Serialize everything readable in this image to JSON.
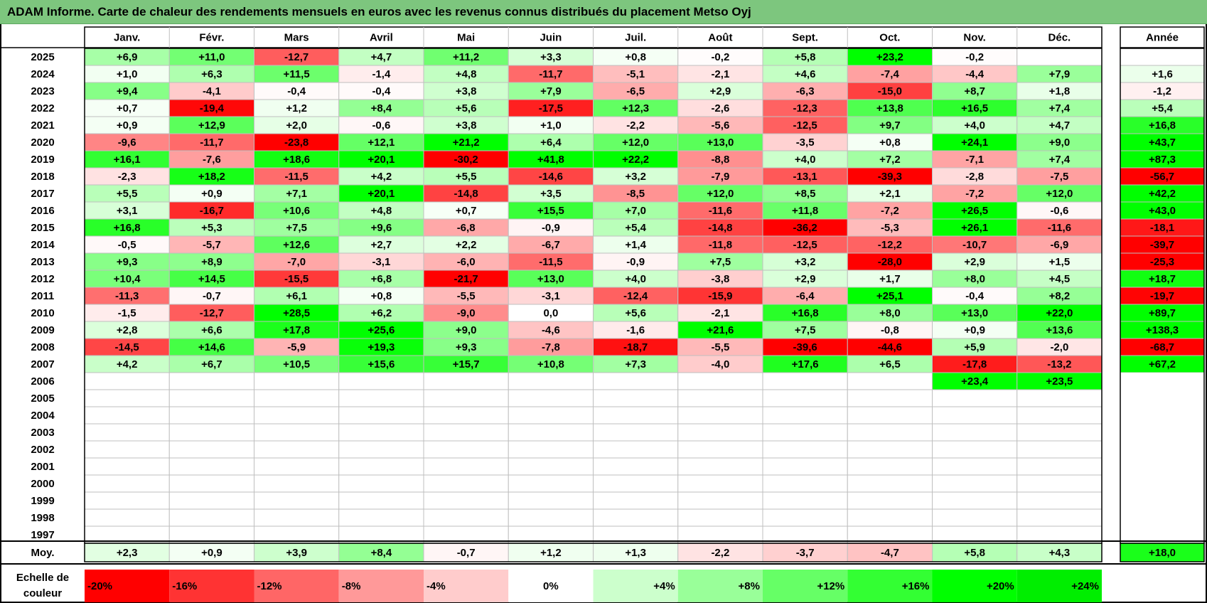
{
  "title": "ADAM Informe. Carte de chaleur des rendements mensuels en euros avec les revenus connus distribués du placement Metso Oyj",
  "chart_data": {
    "type": "heatmap",
    "columns": [
      "Janv.",
      "Févr.",
      "Mars",
      "Avril",
      "Mai",
      "Juin",
      "Juil.",
      "Août",
      "Sept.",
      "Oct.",
      "Nov.",
      "Déc."
    ],
    "year_column": "Année",
    "avg_label": "Moy.",
    "rows": [
      {
        "year": "2025",
        "values": [
          6.9,
          11.0,
          -12.7,
          4.7,
          11.2,
          3.3,
          0.8,
          -0.2,
          5.8,
          23.2,
          -0.2,
          null
        ],
        "annual": null
      },
      {
        "year": "2024",
        "values": [
          1.0,
          6.3,
          11.5,
          -1.4,
          4.8,
          -11.7,
          -5.1,
          -2.1,
          4.6,
          -7.4,
          -4.4,
          7.9
        ],
        "annual": 1.6
      },
      {
        "year": "2023",
        "values": [
          9.4,
          -4.1,
          -0.4,
          -0.4,
          3.8,
          7.9,
          -6.5,
          2.9,
          -6.3,
          -15.0,
          8.7,
          1.8
        ],
        "annual": -1.2
      },
      {
        "year": "2022",
        "values": [
          0.7,
          -19.4,
          1.2,
          8.4,
          5.6,
          -17.5,
          12.3,
          -2.6,
          -12.3,
          13.8,
          16.5,
          7.4
        ],
        "annual": 5.4
      },
      {
        "year": "2021",
        "values": [
          0.9,
          12.9,
          2.0,
          -0.6,
          3.8,
          1.0,
          -2.2,
          -5.6,
          -12.5,
          9.7,
          4.0,
          4.7
        ],
        "annual": 16.8
      },
      {
        "year": "2020",
        "values": [
          -9.6,
          -11.7,
          -23.8,
          12.1,
          21.2,
          6.4,
          12.0,
          13.0,
          -3.5,
          0.8,
          24.1,
          9.0
        ],
        "annual": 43.7
      },
      {
        "year": "2019",
        "values": [
          16.1,
          -7.6,
          18.6,
          20.1,
          -30.2,
          41.8,
          22.2,
          -8.8,
          4.0,
          7.2,
          -7.1,
          7.4
        ],
        "annual": 87.3
      },
      {
        "year": "2018",
        "values": [
          -2.3,
          18.2,
          -11.5,
          4.2,
          5.5,
          -14.6,
          3.2,
          -7.9,
          -13.1,
          -39.3,
          -2.8,
          -7.5
        ],
        "annual": -56.7
      },
      {
        "year": "2017",
        "values": [
          5.5,
          0.9,
          7.1,
          20.1,
          -14.8,
          3.5,
          -8.5,
          12.0,
          8.5,
          2.1,
          -7.2,
          12.0
        ],
        "annual": 42.2
      },
      {
        "year": "2016",
        "values": [
          3.1,
          -16.7,
          10.6,
          4.8,
          0.7,
          15.5,
          7.0,
          -11.6,
          11.8,
          -7.2,
          26.5,
          -0.6
        ],
        "annual": 43.0
      },
      {
        "year": "2015",
        "values": [
          16.8,
          5.3,
          7.5,
          9.6,
          -6.8,
          -0.9,
          5.4,
          -14.8,
          -36.2,
          -5.3,
          26.1,
          -11.6
        ],
        "annual": -18.1
      },
      {
        "year": "2014",
        "values": [
          -0.5,
          -5.7,
          12.6,
          2.7,
          2.2,
          -6.7,
          1.4,
          -11.8,
          -12.5,
          -12.2,
          -10.7,
          -6.9
        ],
        "annual": -39.7
      },
      {
        "year": "2013",
        "values": [
          9.3,
          8.9,
          -7.0,
          -3.1,
          -6.0,
          -11.5,
          -0.9,
          7.5,
          3.2,
          -28.0,
          2.9,
          1.5
        ],
        "annual": -25.3
      },
      {
        "year": "2012",
        "values": [
          10.4,
          14.5,
          -15.5,
          6.8,
          -21.7,
          13.0,
          4.0,
          -3.8,
          2.9,
          1.7,
          8.0,
          4.5
        ],
        "annual": 18.7
      },
      {
        "year": "2011",
        "values": [
          -11.3,
          -0.7,
          6.1,
          0.8,
          -5.5,
          -3.1,
          -12.4,
          -15.9,
          -6.4,
          25.1,
          -0.4,
          8.2
        ],
        "annual": -19.7
      },
      {
        "year": "2010",
        "values": [
          -1.5,
          -12.7,
          28.5,
          6.2,
          -9.0,
          0.0,
          5.6,
          -2.1,
          16.8,
          8.0,
          13.0,
          22.0
        ],
        "annual": 89.7
      },
      {
        "year": "2009",
        "values": [
          2.8,
          6.6,
          17.8,
          25.6,
          9.0,
          -4.6,
          -1.6,
          21.6,
          7.5,
          -0.8,
          0.9,
          13.6
        ],
        "annual": 138.3
      },
      {
        "year": "2008",
        "values": [
          -14.5,
          14.6,
          -5.9,
          19.3,
          9.3,
          -7.8,
          -18.7,
          -5.5,
          -39.6,
          -44.6,
          5.9,
          -2.0
        ],
        "annual": -68.7
      },
      {
        "year": "2007",
        "values": [
          4.2,
          6.7,
          10.5,
          15.6,
          15.7,
          10.8,
          7.3,
          -4.0,
          17.6,
          6.5,
          -17.8,
          -13.2
        ],
        "annual": 67.2
      },
      {
        "year": "2006",
        "values": [
          null,
          null,
          null,
          null,
          null,
          null,
          null,
          null,
          null,
          null,
          23.4,
          23.5
        ],
        "annual": null
      },
      {
        "year": "2005",
        "values": [
          null,
          null,
          null,
          null,
          null,
          null,
          null,
          null,
          null,
          null,
          null,
          null
        ],
        "annual": null
      },
      {
        "year": "2004",
        "values": [
          null,
          null,
          null,
          null,
          null,
          null,
          null,
          null,
          null,
          null,
          null,
          null
        ],
        "annual": null
      },
      {
        "year": "2003",
        "values": [
          null,
          null,
          null,
          null,
          null,
          null,
          null,
          null,
          null,
          null,
          null,
          null
        ],
        "annual": null
      },
      {
        "year": "2002",
        "values": [
          null,
          null,
          null,
          null,
          null,
          null,
          null,
          null,
          null,
          null,
          null,
          null
        ],
        "annual": null
      },
      {
        "year": "2001",
        "values": [
          null,
          null,
          null,
          null,
          null,
          null,
          null,
          null,
          null,
          null,
          null,
          null
        ],
        "annual": null
      },
      {
        "year": "2000",
        "values": [
          null,
          null,
          null,
          null,
          null,
          null,
          null,
          null,
          null,
          null,
          null,
          null
        ],
        "annual": null
      },
      {
        "year": "1999",
        "values": [
          null,
          null,
          null,
          null,
          null,
          null,
          null,
          null,
          null,
          null,
          null,
          null
        ],
        "annual": null
      },
      {
        "year": "1998",
        "values": [
          null,
          null,
          null,
          null,
          null,
          null,
          null,
          null,
          null,
          null,
          null,
          null
        ],
        "annual": null
      },
      {
        "year": "1997",
        "values": [
          null,
          null,
          null,
          null,
          null,
          null,
          null,
          null,
          null,
          null,
          null,
          null
        ],
        "annual": null
      }
    ],
    "averages": [
      2.3,
      0.9,
      3.9,
      8.4,
      -0.7,
      1.2,
      1.3,
      -2.2,
      -3.7,
      -4.7,
      5.8,
      4.3
    ],
    "annual_average": 18.0,
    "color_scale": {
      "label": "Echelle de couleur",
      "stops": [
        {
          "label": "-20%",
          "value": -20,
          "color": "#ff0000"
        },
        {
          "label": "-16%",
          "value": -16,
          "color": "#ff3333"
        },
        {
          "label": "-12%",
          "value": -12,
          "color": "#ff6666"
        },
        {
          "label": "-8%",
          "value": -8,
          "color": "#ff9999"
        },
        {
          "label": "-4%",
          "value": -4,
          "color": "#ffcccc"
        },
        {
          "label": "0%",
          "value": 0,
          "color": "#ffffff"
        },
        {
          "label": "+4%",
          "value": 4,
          "color": "#ccffcc"
        },
        {
          "label": "+8%",
          "value": 8,
          "color": "#99ff99"
        },
        {
          "label": "+12%",
          "value": 12,
          "color": "#66ff66"
        },
        {
          "label": "+16%",
          "value": 16,
          "color": "#33ff33"
        },
        {
          "label": "+20%",
          "value": 20,
          "color": "#00ff00"
        },
        {
          "label": "+24%",
          "value": 24,
          "color": "#00ee00"
        }
      ]
    }
  },
  "colors": {
    "title_bar": "#7dc67e",
    "grid": "#bfbfbf",
    "border": "#000000"
  }
}
